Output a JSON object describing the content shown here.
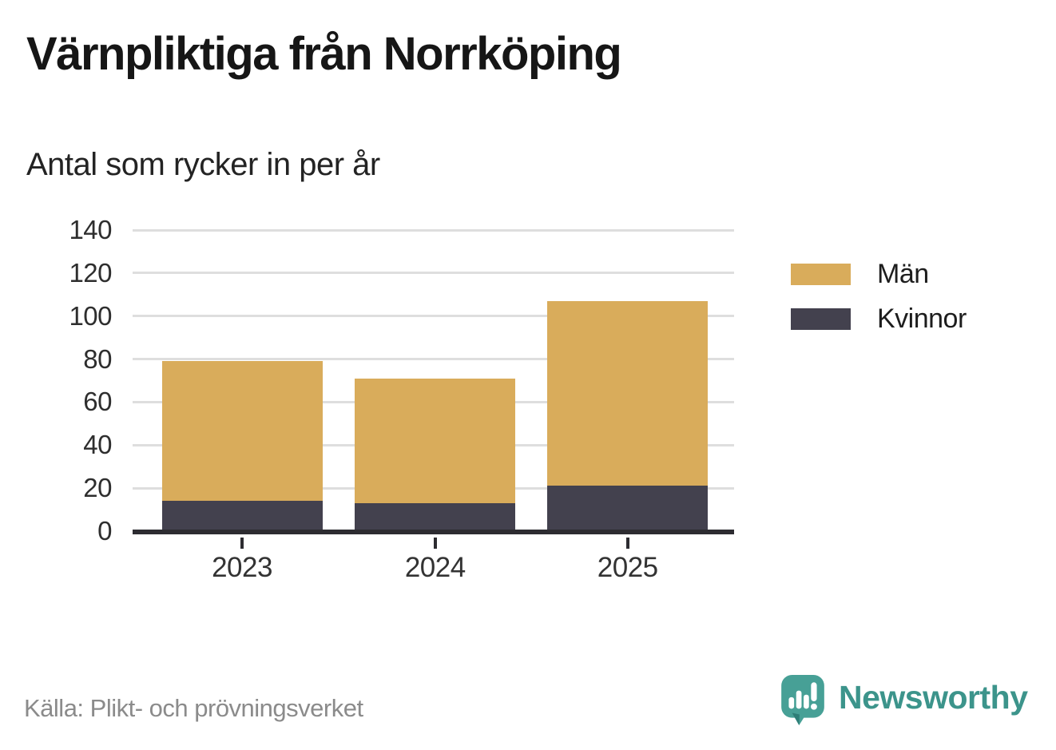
{
  "header": {
    "title": "Värnpliktiga från Norrköping",
    "subtitle": "Antal som rycker in per år"
  },
  "chart_data": {
    "type": "bar",
    "stacked": true,
    "title": "Värnpliktiga från Norrköping",
    "subtitle": "Antal som rycker in per år",
    "categories": [
      "2023",
      "2024",
      "2025"
    ],
    "series": [
      {
        "name": "Män",
        "color": "#d9ac5b",
        "values": [
          65,
          58,
          86
        ]
      },
      {
        "name": "Kvinnor",
        "color": "#43414e",
        "values": [
          14,
          13,
          21
        ]
      }
    ],
    "totals": [
      79,
      71,
      107
    ],
    "xlabel": "",
    "ylabel": "",
    "ylim": [
      0,
      140
    ],
    "ytick_step": 20,
    "yticks": [
      0,
      20,
      40,
      60,
      80,
      100,
      120,
      140
    ],
    "grid": true,
    "legend_position": "right",
    "gridline_color": "#dedede",
    "axis_color": "#2d2c31"
  },
  "footer": {
    "source": "Källa: Plikt- och prövningsverket",
    "brand": "Newsworthy"
  },
  "colors": {
    "brand_teal": "#3c948b",
    "brand_icon_teal": "#47a096",
    "brand_icon_shade": "#2e7e77"
  }
}
